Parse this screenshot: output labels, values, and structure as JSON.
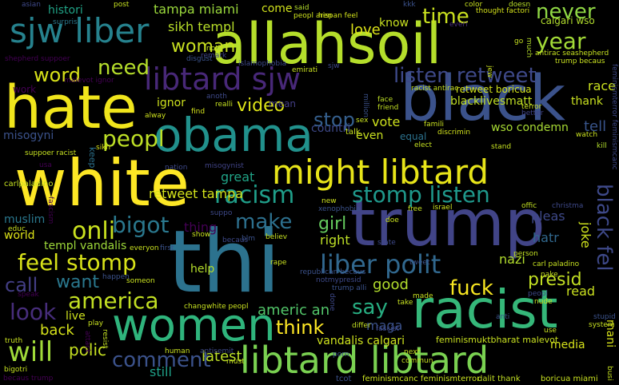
{
  "words": [
    {
      "text": "allahsoil",
      "color": "#b5de2b"
    },
    {
      "text": "black",
      "color": "#3b528b"
    },
    {
      "text": "white",
      "color": "#fde725"
    },
    {
      "text": "trump",
      "color": "#414487"
    },
    {
      "text": "thi",
      "color": "#2c728e"
    },
    {
      "text": "hate",
      "color": "#f0e51c"
    },
    {
      "text": "racist",
      "color": "#35b779"
    },
    {
      "text": "women",
      "color": "#2fb47c"
    },
    {
      "text": "obama",
      "color": "#21918c"
    },
    {
      "text": "might libtard",
      "color": "#e7e419"
    },
    {
      "text": "libtard libtard",
      "color": "#7ad151"
    },
    {
      "text": "sjw liber",
      "color": "#26828e"
    },
    {
      "text": "libtard sjw",
      "color": "#482878"
    },
    {
      "text": "racism",
      "color": "#1f9e89"
    },
    {
      "text": "stomp listen",
      "color": "#1f988b"
    },
    {
      "text": "liber polit",
      "color": "#31688e"
    },
    {
      "text": "listen retweet",
      "color": "#3e4989"
    },
    {
      "text": "feel stomp",
      "color": "#d8e219"
    },
    {
      "text": "america",
      "color": "#c2df23"
    },
    {
      "text": "will",
      "color": "#a0da39"
    },
    {
      "text": "comment",
      "color": "#3b528b"
    },
    {
      "text": "bigot",
      "color": "#2a788e"
    },
    {
      "text": "onli",
      "color": "#cae11f"
    },
    {
      "text": "peopl",
      "color": "#bddf26"
    },
    {
      "text": "video",
      "color": "#dde318"
    },
    {
      "text": "make",
      "color": "#2d708e"
    },
    {
      "text": "need",
      "color": "#b5de2b"
    },
    {
      "text": "word",
      "color": "#d8e219"
    },
    {
      "text": "woman",
      "color": "#c8e020"
    },
    {
      "text": "year",
      "color": "#a2da37"
    },
    {
      "text": "time",
      "color": "#cae11f"
    },
    {
      "text": "never",
      "color": "#8fd744"
    },
    {
      "text": "fuck",
      "color": "#f8e621"
    },
    {
      "text": "say",
      "color": "#27ad81"
    },
    {
      "text": "look",
      "color": "#472d7b"
    },
    {
      "text": "think",
      "color": "#fde725"
    },
    {
      "text": "want",
      "color": "#2a788e"
    },
    {
      "text": "call",
      "color": "#433e85"
    },
    {
      "text": "stop",
      "color": "#355f8d"
    },
    {
      "text": "black fel",
      "color": "#3e4989"
    },
    {
      "text": "tampa miami",
      "color": "#9bd93c"
    },
    {
      "text": "sikh templ",
      "color": "#b8de29"
    },
    {
      "text": "retweet tampa",
      "color": "#d2e21b"
    },
    {
      "text": "girl",
      "color": "#65cb5e"
    },
    {
      "text": "presid",
      "color": "#c2df23"
    },
    {
      "text": "americ an",
      "color": "#52c569"
    },
    {
      "text": "polic",
      "color": "#c5e021"
    },
    {
      "text": "back",
      "color": "#d5e21a"
    },
    {
      "text": "latest",
      "color": "#bddf26"
    },
    {
      "text": "still",
      "color": "#1fa088"
    },
    {
      "text": "good",
      "color": "#b2dd2d"
    },
    {
      "text": "great",
      "color": "#20a386"
    },
    {
      "text": "retweet boricua",
      "color": "#d2e21b"
    },
    {
      "text": "blacklivesmatt",
      "color": "#c0df25"
    },
    {
      "text": "love",
      "color": "#dde318"
    },
    {
      "text": "vote",
      "color": "#cde11d"
    },
    {
      "text": "even",
      "color": "#c8e020"
    },
    {
      "text": "equal",
      "color": "#2c728e"
    },
    {
      "text": "wso condemn",
      "color": "#a8db34"
    },
    {
      "text": "vandalis calgari",
      "color": "#cde11d"
    },
    {
      "text": "maga",
      "color": "#3b528b"
    },
    {
      "text": "templ vandalis",
      "color": "#9fda3a"
    },
    {
      "text": "ignor",
      "color": "#cde11d"
    },
    {
      "text": "misogyni",
      "color": "#3b528b"
    },
    {
      "text": "countri",
      "color": "#3e4989"
    },
    {
      "text": "nazi",
      "color": "#b2dd2d"
    },
    {
      "text": "right",
      "color": "#bddf26"
    },
    {
      "text": "hatr",
      "color": "#31688e"
    },
    {
      "text": "joke",
      "color": "#cde11d"
    },
    {
      "text": "tell",
      "color": "#39558c"
    },
    {
      "text": "race",
      "color": "#cae11f"
    },
    {
      "text": "thank",
      "color": "#c8e020"
    },
    {
      "text": "pleas",
      "color": "#3e4989"
    },
    {
      "text": "muslim",
      "color": "#2a788e"
    },
    {
      "text": "world",
      "color": "#dde318"
    },
    {
      "text": "thing",
      "color": "#440154"
    },
    {
      "text": "live",
      "color": "#cde11d"
    },
    {
      "text": "know",
      "color": "#c8e020"
    },
    {
      "text": "come",
      "color": "#d0e11c"
    },
    {
      "text": "histori",
      "color": "#20a386"
    },
    {
      "text": "media",
      "color": "#d5e21a"
    },
    {
      "text": "mani",
      "color": "#d8e219"
    },
    {
      "text": "read",
      "color": "#cae11f"
    },
    {
      "text": "help",
      "color": "#b5de2b"
    },
    {
      "text": "calgari wso",
      "color": "#b2dd2d"
    },
    {
      "text": "carlpaladino",
      "color": "#c5e021"
    },
    {
      "text": "work",
      "color": "#440154"
    },
    {
      "text": "mean",
      "color": "#433e85"
    },
    {
      "text": "asian",
      "color": "#3e4989"
    },
    {
      "text": "post",
      "color": "#c5e021"
    },
    {
      "text": "said",
      "color": "#b5de2b"
    },
    {
      "text": "kkk",
      "color": "#3b528b"
    },
    {
      "text": "color",
      "color": "#c8e020"
    },
    {
      "text": "doesn",
      "color": "#b8de29"
    },
    {
      "text": "everi",
      "color": "#472d7b"
    },
    {
      "text": "peopl aren",
      "color": "#cde11d"
    },
    {
      "text": "hispan feel",
      "color": "#d2e21b"
    },
    {
      "text": "thought factori",
      "color": "#d5e21a"
    },
    {
      "text": "surpris",
      "color": "#2a788e"
    },
    {
      "text": "remark",
      "color": "#414487"
    },
    {
      "text": "noth",
      "color": "#c0df25"
    },
    {
      "text": "shepherd suppoer",
      "color": "#440154"
    },
    {
      "text": "disgust",
      "color": "#3b528b"
    },
    {
      "text": "islamophobia",
      "color": "#3e4989"
    },
    {
      "text": "emirati",
      "color": "#c8e020"
    },
    {
      "text": "malevot ignor",
      "color": "#440154"
    },
    {
      "text": "antirac seashepherd",
      "color": "#c5e021"
    },
    {
      "text": "trump becaus",
      "color": "#c8e020"
    },
    {
      "text": "racist antirac",
      "color": "#c2df23"
    },
    {
      "text": "much",
      "color": "#b5de2b"
    },
    {
      "text": "face",
      "color": "#bddf26"
    },
    {
      "text": "friend",
      "color": "#c2df23"
    },
    {
      "text": "anoth",
      "color": "#3e4989"
    },
    {
      "text": "alway",
      "color": "#cde11d"
    },
    {
      "text": "find",
      "color": "#d2e21b"
    },
    {
      "text": "realli",
      "color": "#c5e021"
    },
    {
      "text": "suppoer racist",
      "color": "#c5e021"
    },
    {
      "text": "usa",
      "color": "#440154"
    },
    {
      "text": "sikh",
      "color": "#d8e219"
    },
    {
      "text": "keep",
      "color": "#2c728e"
    },
    {
      "text": "misogynist",
      "color": "#414487"
    },
    {
      "text": "nation",
      "color": "#3e4989"
    },
    {
      "text": "talk",
      "color": "#c8e020"
    },
    {
      "text": "elect",
      "color": "#c5e021"
    },
    {
      "text": "famili",
      "color": "#c8e020"
    },
    {
      "text": "discrimin",
      "color": "#d0e11c"
    },
    {
      "text": "stand",
      "color": "#c5e021"
    },
    {
      "text": "watch",
      "color": "#c8e020"
    },
    {
      "text": "kill",
      "color": "#b2dd2d"
    },
    {
      "text": "better",
      "color": "#414487"
    },
    {
      "text": "terror",
      "color": "#c8e020"
    },
    {
      "text": "new",
      "color": "#cde11d"
    },
    {
      "text": "xenophobia",
      "color": "#3b528b"
    },
    {
      "text": "free",
      "color": "#c5e021"
    },
    {
      "text": "israel",
      "color": "#cde11d"
    },
    {
      "text": "offic",
      "color": "#c2df23"
    },
    {
      "text": "christma",
      "color": "#3e4989"
    },
    {
      "text": "educ",
      "color": "#c8e020"
    },
    {
      "text": "fascism",
      "color": "#440154"
    },
    {
      "text": "everyon",
      "color": "#c8e020"
    },
    {
      "text": "first",
      "color": "#3b528b"
    },
    {
      "text": "becaus",
      "color": "#3e4989"
    },
    {
      "text": "show",
      "color": "#c8e020"
    },
    {
      "text": "believ",
      "color": "#c5e021"
    },
    {
      "text": "suppo",
      "color": "#3e4989"
    },
    {
      "text": "blm",
      "color": "#3b528b"
    },
    {
      "text": "doe",
      "color": "#c8e020"
    },
    {
      "text": "state",
      "color": "#3e4989"
    },
    {
      "text": "person",
      "color": "#c2df23"
    },
    {
      "text": "carl paladino",
      "color": "#c5e021"
    },
    {
      "text": "tweet",
      "color": "#3b528b"
    },
    {
      "text": "rape",
      "color": "#c8e020"
    },
    {
      "text": "republican becaus",
      "color": "#3b528b"
    },
    {
      "text": "notmypresid",
      "color": "#3e4989"
    },
    {
      "text": "trump alli",
      "color": "#3b528b"
    },
    {
      "text": "nake",
      "color": "#c5e021"
    },
    {
      "text": "peopl",
      "color": "#3e4989"
    },
    {
      "text": "chang",
      "color": "#c5e021"
    },
    {
      "text": "white peopl",
      "color": "#c8e020"
    },
    {
      "text": "speak",
      "color": "#440154"
    },
    {
      "text": "happen",
      "color": "#3b528b"
    },
    {
      "text": "someon",
      "color": "#c8e020"
    },
    {
      "text": "done",
      "color": "#3e4989"
    },
    {
      "text": "take",
      "color": "#c5e021"
    },
    {
      "text": "made",
      "color": "#c8e020"
    },
    {
      "text": "anti",
      "color": "#3b528b"
    },
    {
      "text": "nude",
      "color": "#c5e021"
    },
    {
      "text": "play",
      "color": "#c8e020"
    },
    {
      "text": "differ",
      "color": "#c2df23"
    },
    {
      "text": "fascist",
      "color": "#3e4989"
    },
    {
      "text": "use",
      "color": "#c8e020"
    },
    {
      "text": "system",
      "color": "#c5e021"
    },
    {
      "text": "stupid",
      "color": "#3b528b"
    },
    {
      "text": "truth",
      "color": "#c8e020"
    },
    {
      "text": "attack",
      "color": "#440154"
    },
    {
      "text": "resist",
      "color": "#c2df23"
    },
    {
      "text": "human",
      "color": "#c8e020"
    },
    {
      "text": "antisemit",
      "color": "#3e4989"
    },
    {
      "text": "must",
      "color": "#c5e021"
    },
    {
      "text": "porn",
      "color": "#3b528b"
    },
    {
      "text": "next",
      "color": "#c8e020"
    },
    {
      "text": "commun",
      "color": "#c5e021"
    },
    {
      "text": "feminismuktbharat malevot",
      "color": "#c8e020"
    },
    {
      "text": "bigotri",
      "color": "#c5e021"
    },
    {
      "text": "becaus trump",
      "color": "#440154"
    },
    {
      "text": "tcot",
      "color": "#3b528b"
    },
    {
      "text": "feminismcanc feminismterror",
      "color": "#c8e020"
    },
    {
      "text": "dalit thank",
      "color": "#c2df23"
    },
    {
      "text": "boricua miami",
      "color": "#c8e020"
    },
    {
      "text": "busi",
      "color": "#c5e021"
    },
    {
      "text": "feminismterror feminismcanc",
      "color": "#3e4989"
    },
    {
      "text": "jew",
      "color": "#c8e020"
    },
    {
      "text": "go",
      "color": "#c5e021"
    },
    {
      "text": "million",
      "color": "#3b528b"
    },
    {
      "text": "sex",
      "color": "#c8e020"
    },
    {
      "text": "sjw",
      "color": "#3e4989"
    }
  ]
}
